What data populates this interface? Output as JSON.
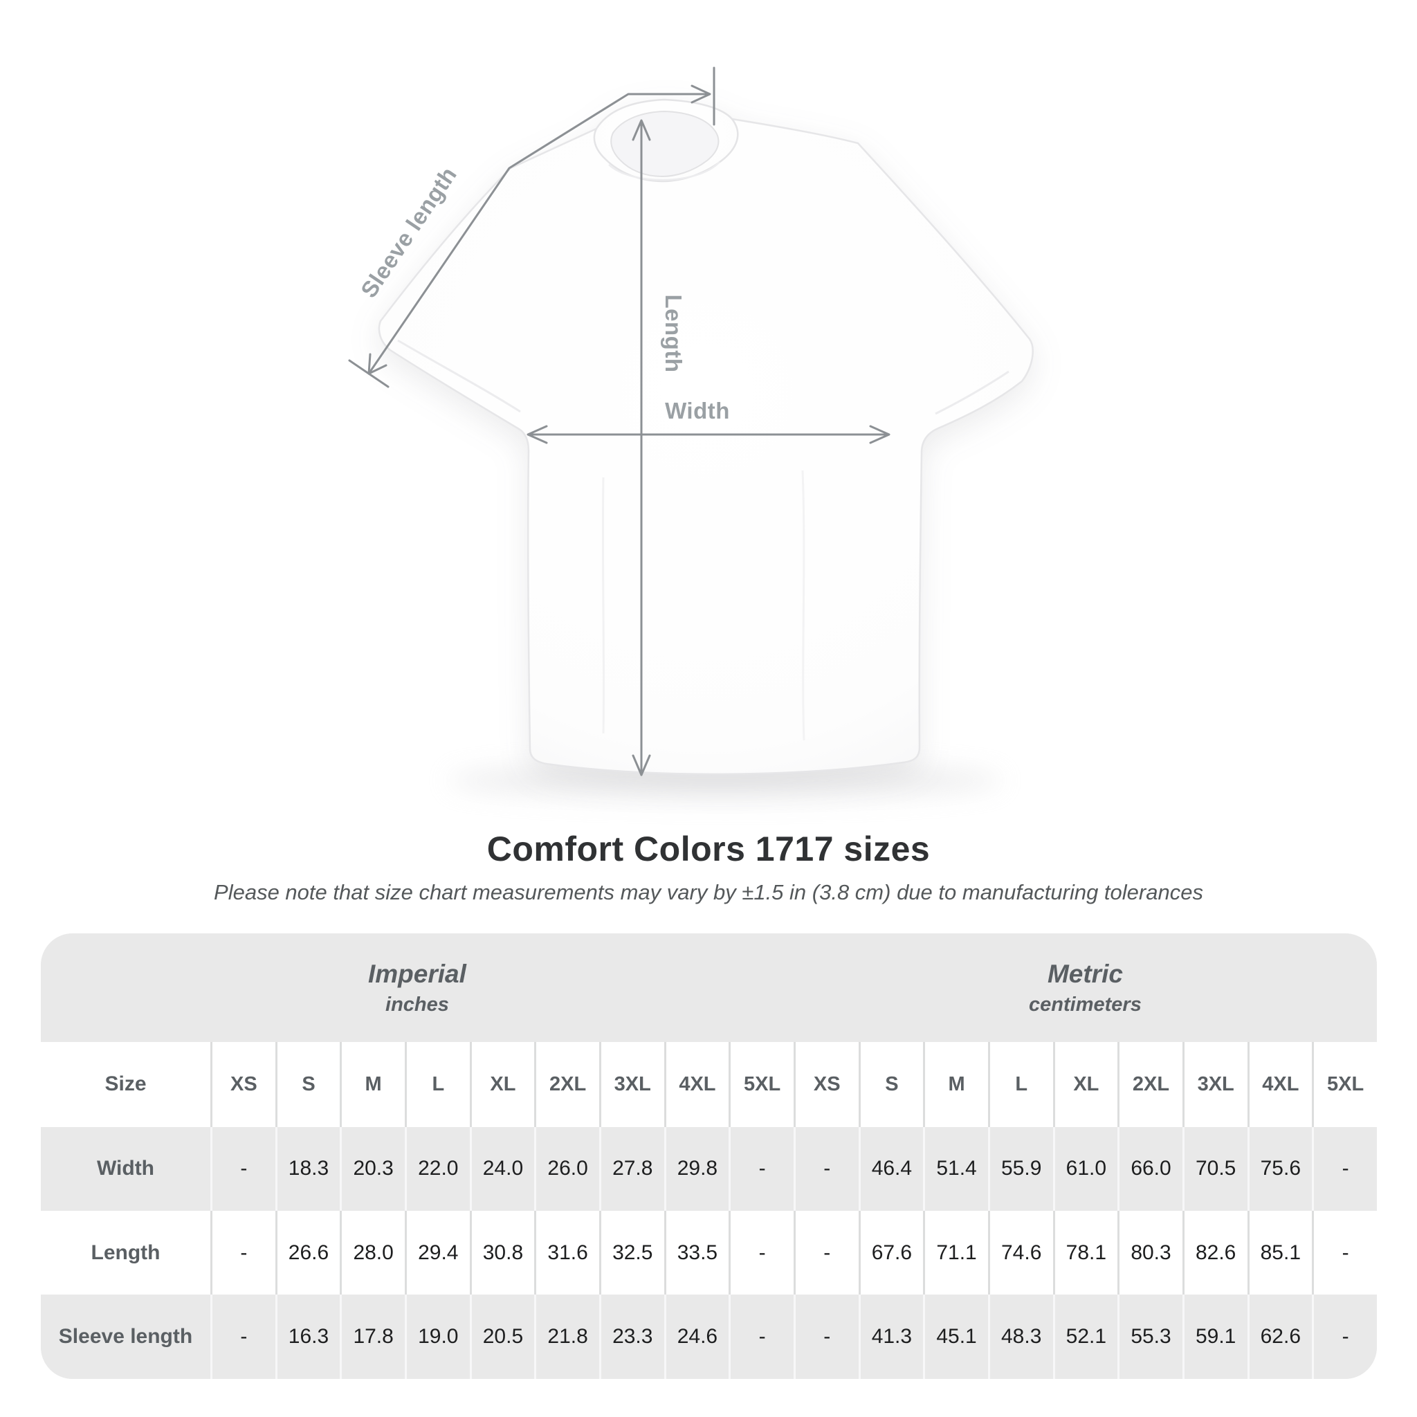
{
  "diagram": {
    "labels": {
      "sleeve_length": "Sleeve length",
      "length": "Length",
      "width": "Width"
    },
    "line_color": "#8c9094",
    "label_color": "#9aa0a4"
  },
  "chart_data": {
    "type": "table",
    "title": "Comfort Colors 1717 sizes",
    "subtitle": "Please note that size chart measurements may vary by ±1.5 in (3.8 cm) due to manufacturing tolerances",
    "size_column_header": "Size",
    "sizes": [
      "XS",
      "S",
      "M",
      "L",
      "XL",
      "2XL",
      "3XL",
      "4XL",
      "5XL"
    ],
    "unit_groups": [
      {
        "label": "Imperial",
        "sublabel": "inches",
        "span": 10
      },
      {
        "label": "Metric",
        "sublabel": "centimeters",
        "span": 9
      }
    ],
    "rows": [
      {
        "label": "Width",
        "imperial": [
          "-",
          "18.3",
          "20.3",
          "22.0",
          "24.0",
          "26.0",
          "27.8",
          "29.8",
          "-"
        ],
        "metric": [
          "-",
          "46.4",
          "51.4",
          "55.9",
          "61.0",
          "66.0",
          "70.5",
          "75.6",
          "-"
        ]
      },
      {
        "label": "Length",
        "imperial": [
          "-",
          "26.6",
          "28.0",
          "29.4",
          "30.8",
          "31.6",
          "32.5",
          "33.5",
          "-"
        ],
        "metric": [
          "-",
          "67.6",
          "71.1",
          "74.6",
          "78.1",
          "80.3",
          "82.6",
          "85.1",
          "-"
        ]
      },
      {
        "label": "Sleeve length",
        "imperial": [
          "-",
          "16.3",
          "17.8",
          "19.0",
          "20.5",
          "21.8",
          "23.3",
          "24.6",
          "-"
        ],
        "metric": [
          "-",
          "41.3",
          "45.1",
          "48.3",
          "52.1",
          "55.3",
          "59.1",
          "62.6",
          "-"
        ]
      }
    ]
  }
}
